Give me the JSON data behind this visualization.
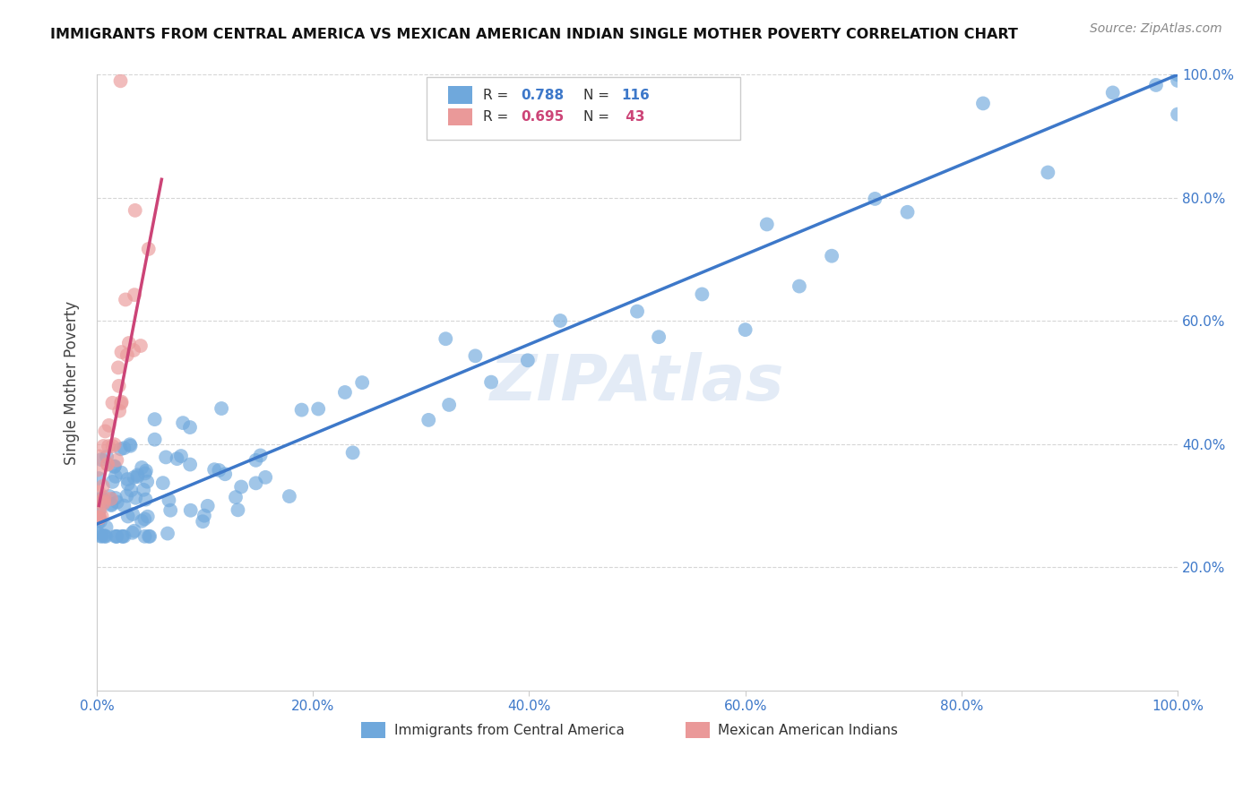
{
  "title": "IMMIGRANTS FROM CENTRAL AMERICA VS MEXICAN AMERICAN INDIAN SINGLE MOTHER POVERTY CORRELATION CHART",
  "source": "Source: ZipAtlas.com",
  "ylabel": "Single Mother Poverty",
  "ytick_labels": [
    "20.0%",
    "40.0%",
    "60.0%",
    "80.0%",
    "100.0%"
  ],
  "ytick_values": [
    0.2,
    0.4,
    0.6,
    0.8,
    1.0
  ],
  "xtick_labels": [
    "0.0%",
    "20.0%",
    "40.0%",
    "60.0%",
    "80.0%",
    "100.0%"
  ],
  "xtick_values": [
    0.0,
    0.2,
    0.4,
    0.6,
    0.8,
    1.0
  ],
  "blue_r": 0.788,
  "blue_n": 116,
  "pink_r": 0.695,
  "pink_n": 43,
  "blue_color": "#6fa8dc",
  "pink_color": "#ea9999",
  "blue_line_color": "#3d78c9",
  "pink_line_color": "#cc4477",
  "watermark": "ZIPAtlas"
}
